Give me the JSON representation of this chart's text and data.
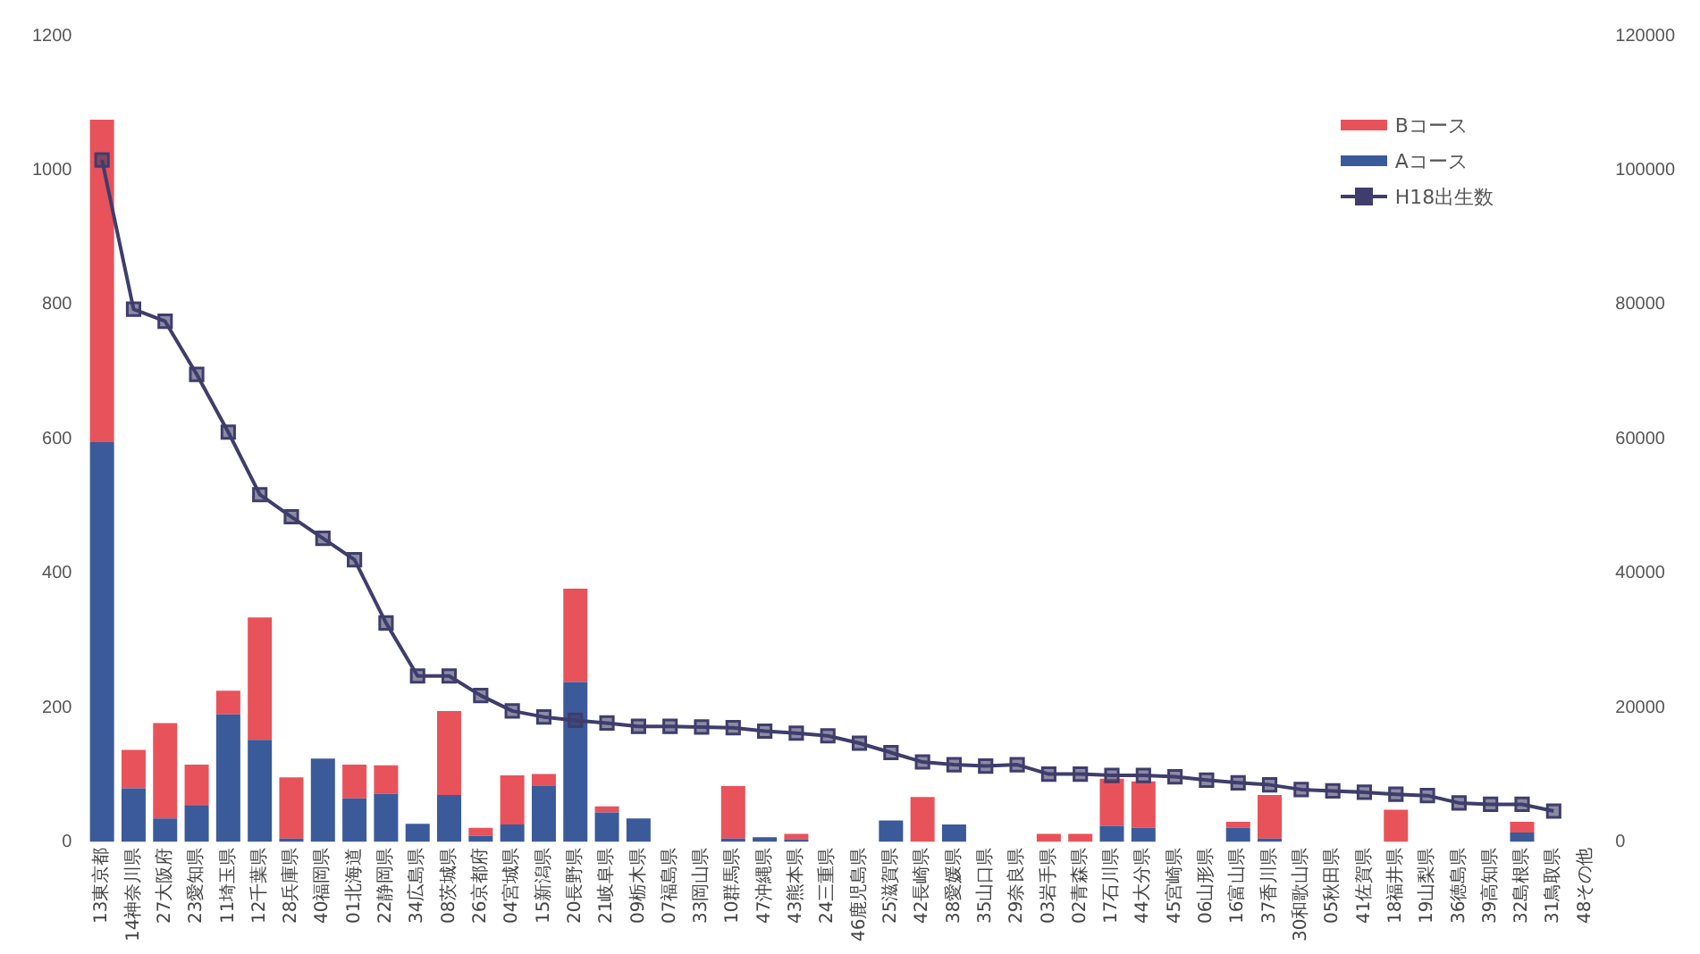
{
  "chart_data": {
    "type": "bar",
    "stacked": true,
    "legend": "top right",
    "grid": false,
    "marker": "square",
    "categories": [
      "13東京都",
      "14神奈川県",
      "27大阪府",
      "23愛知県",
      "11埼玉県",
      "12千葉県",
      "28兵庫県",
      "40福岡県",
      "01北海道",
      "22静岡県",
      "34広島県",
      "08茨城県",
      "26京都府",
      "04宮城県",
      "15新潟県",
      "20長野県",
      "21岐阜県",
      "09栃木県",
      "07福島県",
      "33岡山県",
      "10群馬県",
      "47沖縄県",
      "43熊本県",
      "24三重県",
      "46鹿児島県",
      "25滋賀県",
      "42長崎県",
      "38愛媛県",
      "35山口県",
      "29奈良県",
      "03岩手県",
      "02青森県",
      "17石川県",
      "44大分県",
      "45宮崎県",
      "06山形県",
      "16富山県",
      "37香川県",
      "30和歌山県",
      "05秋田県",
      "41佐賀県",
      "18福井県",
      "19山梨県",
      "36徳島県",
      "39高知県",
      "32島根県",
      "31鳥取県",
      "48その他"
    ],
    "ylim": [
      0,
      1200
    ],
    "yticks": [
      0,
      200,
      400,
      600,
      800,
      1000,
      1200
    ],
    "y2lim": [
      0,
      120000
    ],
    "y2ticks": [
      0,
      20000,
      40000,
      60000,
      80000,
      100000,
      120000
    ],
    "series": [
      {
        "name": "Aコース",
        "color": "#3b5a9a",
        "values": [
          595,
          80,
          35,
          55,
          190,
          152,
          5,
          124,
          65,
          72,
          27,
          70,
          9,
          26,
          83,
          238,
          44,
          35,
          0,
          0,
          5,
          7,
          4,
          0,
          0,
          32,
          0,
          26,
          0,
          0,
          0,
          0,
          24,
          21,
          0,
          0,
          21,
          5,
          0,
          0,
          0,
          0,
          0,
          0,
          0,
          14,
          0,
          0
        ]
      },
      {
        "name": "Bコース",
        "color": "#e8525a",
        "values": [
          480,
          57,
          142,
          60,
          35,
          182,
          91,
          0,
          50,
          42,
          0,
          125,
          12,
          73,
          18,
          139,
          9,
          0,
          0,
          0,
          78,
          0,
          8,
          0,
          0,
          0,
          67,
          0,
          0,
          0,
          12,
          12,
          70,
          69,
          0,
          0,
          9,
          65,
          0,
          0,
          0,
          48,
          0,
          0,
          0,
          16,
          0,
          0
        ]
      },
      {
        "name": "H18出生数",
        "type": "line",
        "axis": "y2",
        "color": "#3f3d6b",
        "values": [
          101500,
          79300,
          77500,
          69600,
          61000,
          51700,
          48400,
          45200,
          42000,
          32600,
          24700,
          24700,
          21800,
          19500,
          18600,
          18100,
          17700,
          17200,
          17200,
          17100,
          17000,
          16500,
          16200,
          15800,
          14700,
          13300,
          11900,
          11500,
          11300,
          11500,
          10100,
          10100,
          9900,
          9900,
          9700,
          9200,
          8800,
          8500,
          7800,
          7600,
          7400,
          7100,
          6900,
          5800,
          5600,
          5600,
          4600,
          null
        ]
      }
    ]
  }
}
